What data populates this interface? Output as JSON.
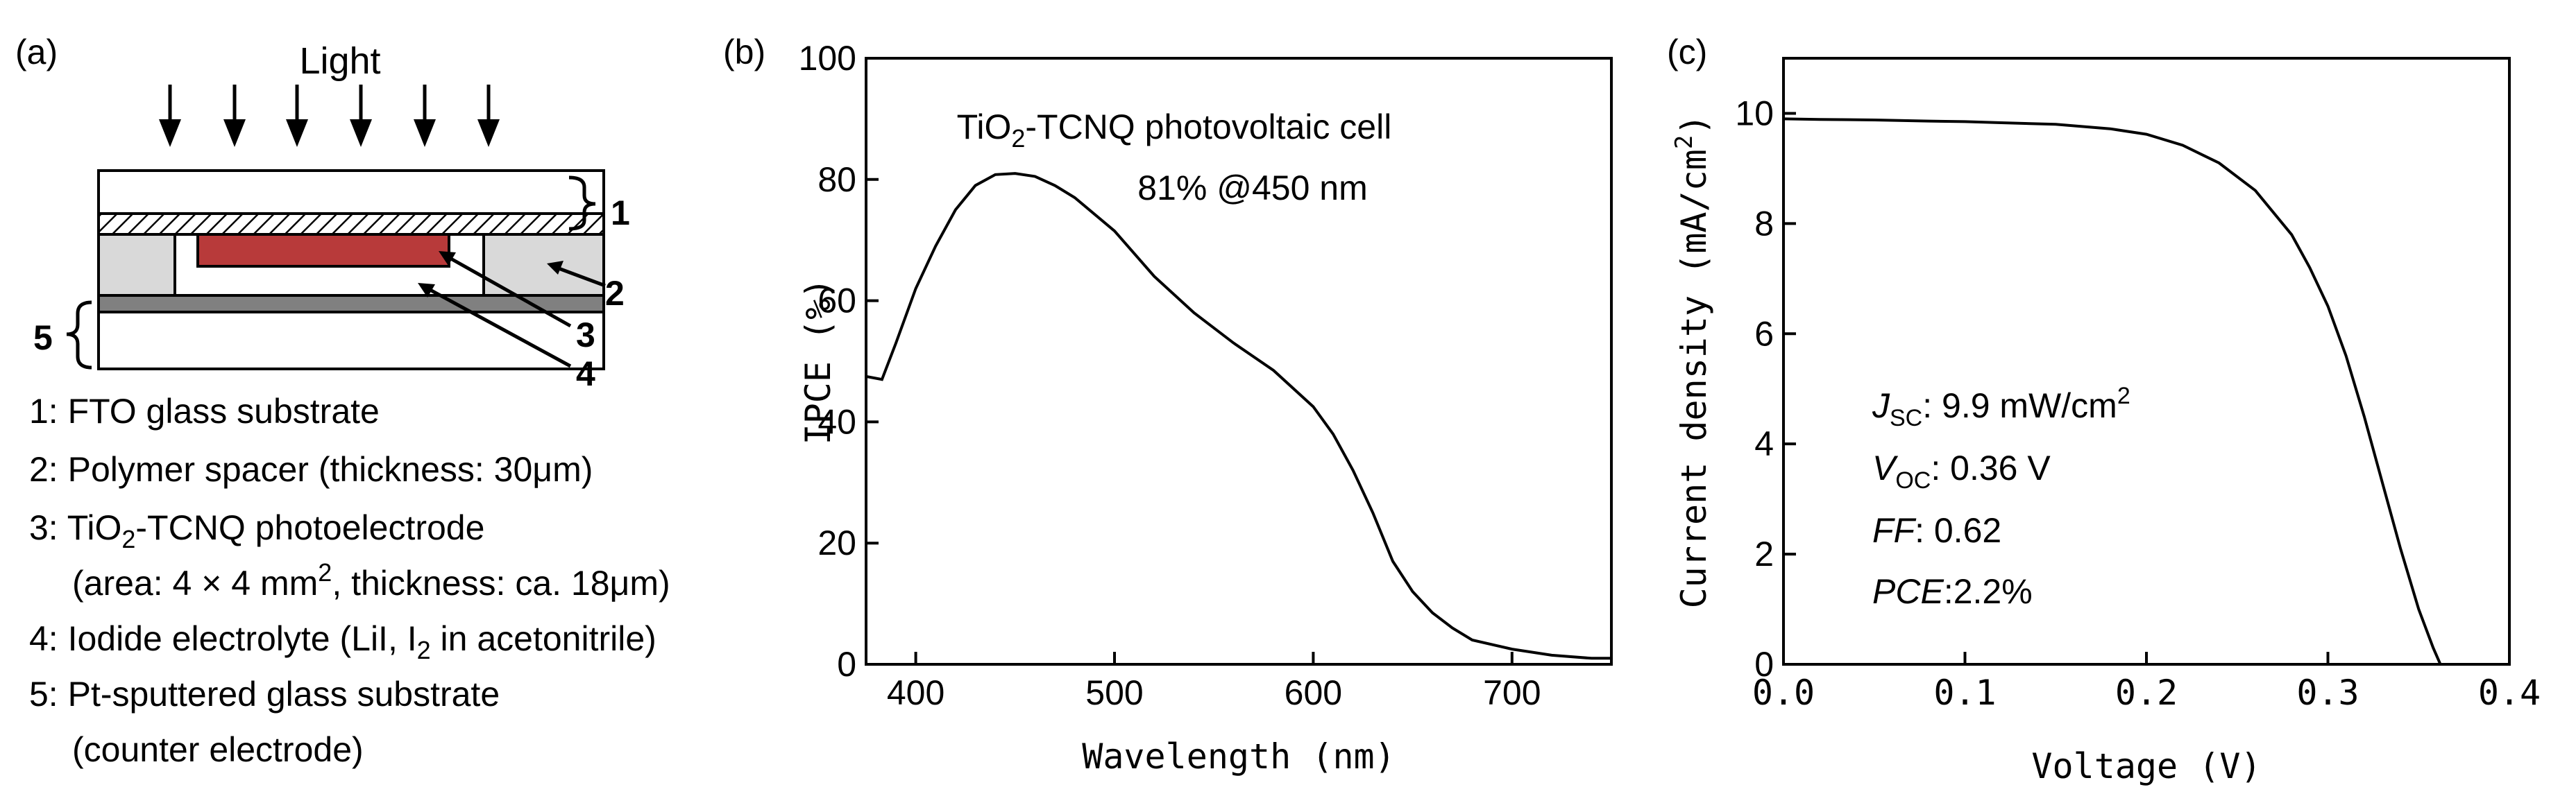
{
  "panel_a": {
    "label": "(a)",
    "light_label": "Light",
    "part_numbers": [
      "1",
      "2",
      "3",
      "4",
      "5"
    ],
    "legend": [
      "1: FTO glass substrate",
      "2: Polymer spacer (thickness: 30μm)",
      "3: TiO2-TCNQ photoelectrode",
      "(area: 4 × 4 mm2, thickness: ca. 18μm)",
      "4: Iodide electrolyte (LiI, I2 in acetonitrile)",
      "5: Pt-sputtered glass substrate",
      "(counter electrode)"
    ],
    "colors": {
      "photoelectrode": "#b83a3a",
      "spacer": "#d9d9d9",
      "pt_layer": "#808080"
    }
  },
  "chart_data": [
    {
      "panel": "(b)",
      "type": "line",
      "title": "TiO2-TCNQ photovoltaic cell",
      "annotation": "81% @450 nm",
      "xlabel": "Wavelength (nm)",
      "ylabel": "IPCE (%)",
      "xlim": [
        375,
        750
      ],
      "ylim": [
        0,
        100
      ],
      "xticks": [
        400,
        500,
        600,
        700
      ],
      "yticks": [
        0,
        20,
        40,
        60,
        80,
        100
      ],
      "x": [
        375,
        383,
        390,
        400,
        410,
        420,
        430,
        440,
        450,
        460,
        470,
        480,
        500,
        520,
        540,
        560,
        580,
        600,
        610,
        620,
        630,
        640,
        650,
        660,
        670,
        680,
        700,
        720,
        740,
        750
      ],
      "y": [
        47.5,
        47,
        53,
        62,
        69,
        75,
        79,
        80.8,
        81,
        80.5,
        79,
        77,
        71.5,
        64,
        58,
        53,
        48.5,
        42.5,
        38,
        32,
        25,
        17,
        12,
        8.5,
        6,
        4,
        2.5,
        1.5,
        1,
        1
      ]
    },
    {
      "panel": "(c)",
      "type": "line",
      "xlabel": "Voltage (V)",
      "ylabel": "Current density (mA/cm2)",
      "xlim": [
        0,
        0.4
      ],
      "ylim": [
        0,
        11
      ],
      "xticks": [
        0.0,
        0.1,
        0.2,
        0.3,
        0.4
      ],
      "xtick_labels": [
        "0.0",
        "0.1",
        "0.2",
        "0.3",
        "0.4"
      ],
      "yticks": [
        0,
        2,
        4,
        6,
        8,
        10
      ],
      "x": [
        0,
        0.02,
        0.05,
        0.08,
        0.1,
        0.12,
        0.15,
        0.18,
        0.2,
        0.22,
        0.24,
        0.26,
        0.28,
        0.29,
        0.3,
        0.31,
        0.32,
        0.33,
        0.34,
        0.35,
        0.358,
        0.362
      ],
      "y": [
        9.9,
        9.89,
        9.88,
        9.86,
        9.85,
        9.83,
        9.8,
        9.72,
        9.62,
        9.42,
        9.1,
        8.6,
        7.8,
        7.2,
        6.5,
        5.6,
        4.5,
        3.3,
        2.1,
        1.0,
        0.3,
        0
      ],
      "annotations": {
        "jsc": [
          "J",
          "SC",
          ": 9.9 mW/cm",
          "2"
        ],
        "voc": [
          "V",
          "OC",
          ": 0.36 V"
        ],
        "ff": [
          "FF",
          ": 0.62"
        ],
        "pce": [
          "PCE",
          ":2.2%"
        ]
      }
    }
  ]
}
